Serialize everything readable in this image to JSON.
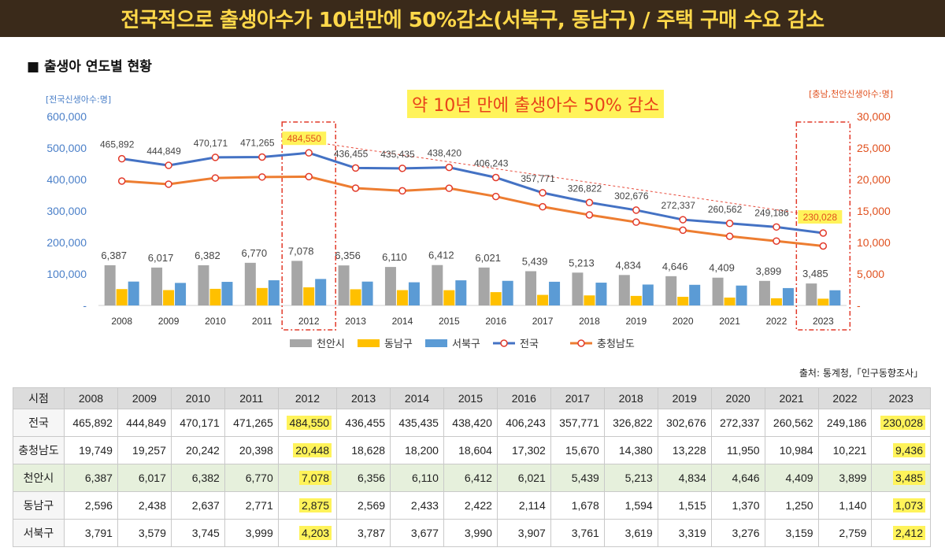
{
  "header": {
    "title": "전국적으로 출생아수가 10년만에 50%감소(서북구, 동남구) / 주택 구매 수요 감소"
  },
  "section": {
    "title": "■ 출생아 연도별 현황"
  },
  "annotation": "약 10년 만에 출생아수 50% 감소",
  "source": "출처: 통계청,「인구동향조사」",
  "chart_data": {
    "type": "bar+line",
    "categories": [
      "2008",
      "2009",
      "2010",
      "2011",
      "2012",
      "2013",
      "2014",
      "2015",
      "2016",
      "2017",
      "2018",
      "2019",
      "2020",
      "2021",
      "2022",
      "2023"
    ],
    "left_axis": {
      "label": "[전국신생아수:명]",
      "range": [
        0,
        600000
      ],
      "ticks": [
        "600,000",
        "500,000",
        "400,000",
        "300,000",
        "200,000",
        "100,000",
        "-"
      ]
    },
    "right_axis": {
      "label": "[충남,천안신생아수:명]",
      "range": [
        0,
        30000
      ],
      "ticks": [
        "30,000",
        "25,000",
        "20,000",
        "15,000",
        "10,000",
        "5,000",
        "-"
      ]
    },
    "bar_series": [
      {
        "name": "천안시",
        "color": "#a6a6a6",
        "axis": "right",
        "values": [
          6387,
          6017,
          6382,
          6770,
          7078,
          6356,
          6110,
          6412,
          6021,
          5439,
          5213,
          4834,
          4646,
          4409,
          3899,
          3485
        ]
      },
      {
        "name": "동남구",
        "color": "#ffc000",
        "axis": "right",
        "values": [
          2596,
          2438,
          2637,
          2771,
          2875,
          2569,
          2433,
          2422,
          2114,
          1678,
          1594,
          1515,
          1370,
          1250,
          1140,
          1073
        ]
      },
      {
        "name": "서북구",
        "color": "#5b9bd5",
        "axis": "right",
        "values": [
          3791,
          3579,
          3745,
          3999,
          4203,
          3787,
          3677,
          3990,
          3907,
          3761,
          3619,
          3319,
          3276,
          3159,
          2759,
          2412
        ]
      }
    ],
    "line_series": [
      {
        "name": "전국",
        "color": "#4472c4",
        "axis": "left",
        "values": [
          465892,
          444849,
          470171,
          471265,
          484550,
          436455,
          435435,
          438420,
          406243,
          357771,
          326822,
          302676,
          272337,
          260562,
          249186,
          230028
        ]
      },
      {
        "name": "충청남도",
        "color": "#ed7d31",
        "axis": "right",
        "values": [
          19749,
          19257,
          20242,
          20398,
          20448,
          18628,
          18200,
          18604,
          17302,
          15670,
          14380,
          13228,
          11950,
          10984,
          10221,
          9436
        ]
      }
    ],
    "line_labels": [
      "465,892",
      "444,849",
      "470,171",
      "471,265",
      "484,550",
      "436,455",
      "435,435",
      "438,420",
      "406,243",
      "357,771",
      "326,822",
      "302,676",
      "272,337",
      "260,562",
      "249,186",
      "230,028"
    ],
    "bar_labels": [
      "6,387",
      "6,017",
      "6,382",
      "6,770",
      "7,078",
      "6,356",
      "6,110",
      "6,412",
      "6,021",
      "5,439",
      "5,213",
      "4,834",
      "4,646",
      "4,409",
      "3,899",
      "3,485"
    ],
    "legend": [
      "천안시",
      "동남구",
      "서북구",
      "전국",
      "충청남도"
    ],
    "highlighted_years": [
      "2012",
      "2023"
    ]
  },
  "table": {
    "header": [
      "시점",
      "2008",
      "2009",
      "2010",
      "2011",
      "2012",
      "2013",
      "2014",
      "2015",
      "2016",
      "2017",
      "2018",
      "2019",
      "2020",
      "2021",
      "2022",
      "2023"
    ],
    "rows": [
      {
        "name": "전국",
        "values": [
          "465,892",
          "444,849",
          "470,171",
          "471,265",
          "484,550",
          "436,455",
          "435,435",
          "438,420",
          "406,243",
          "357,771",
          "326,822",
          "302,676",
          "272,337",
          "260,562",
          "249,186",
          "230,028"
        ]
      },
      {
        "name": "충청남도",
        "values": [
          "19,749",
          "19,257",
          "20,242",
          "20,398",
          "20,448",
          "18,628",
          "18,200",
          "18,604",
          "17,302",
          "15,670",
          "14,380",
          "13,228",
          "11,950",
          "10,984",
          "10,221",
          "9,436"
        ]
      },
      {
        "name": "천안시",
        "values": [
          "6,387",
          "6,017",
          "6,382",
          "6,770",
          "7,078",
          "6,356",
          "6,110",
          "6,412",
          "6,021",
          "5,439",
          "5,213",
          "4,834",
          "4,646",
          "4,409",
          "3,899",
          "3,485"
        ]
      },
      {
        "name": "동남구",
        "values": [
          "2,596",
          "2,438",
          "2,637",
          "2,771",
          "2,875",
          "2,569",
          "2,433",
          "2,422",
          "2,114",
          "1,678",
          "1,594",
          "1,515",
          "1,370",
          "1,250",
          "1,140",
          "1,073"
        ]
      },
      {
        "name": "서북구",
        "values": [
          "3,791",
          "3,579",
          "3,745",
          "3,999",
          "4,203",
          "3,787",
          "3,677",
          "3,990",
          "3,907",
          "3,761",
          "3,619",
          "3,319",
          "3,276",
          "3,159",
          "2,759",
          "2,412"
        ]
      }
    ]
  }
}
